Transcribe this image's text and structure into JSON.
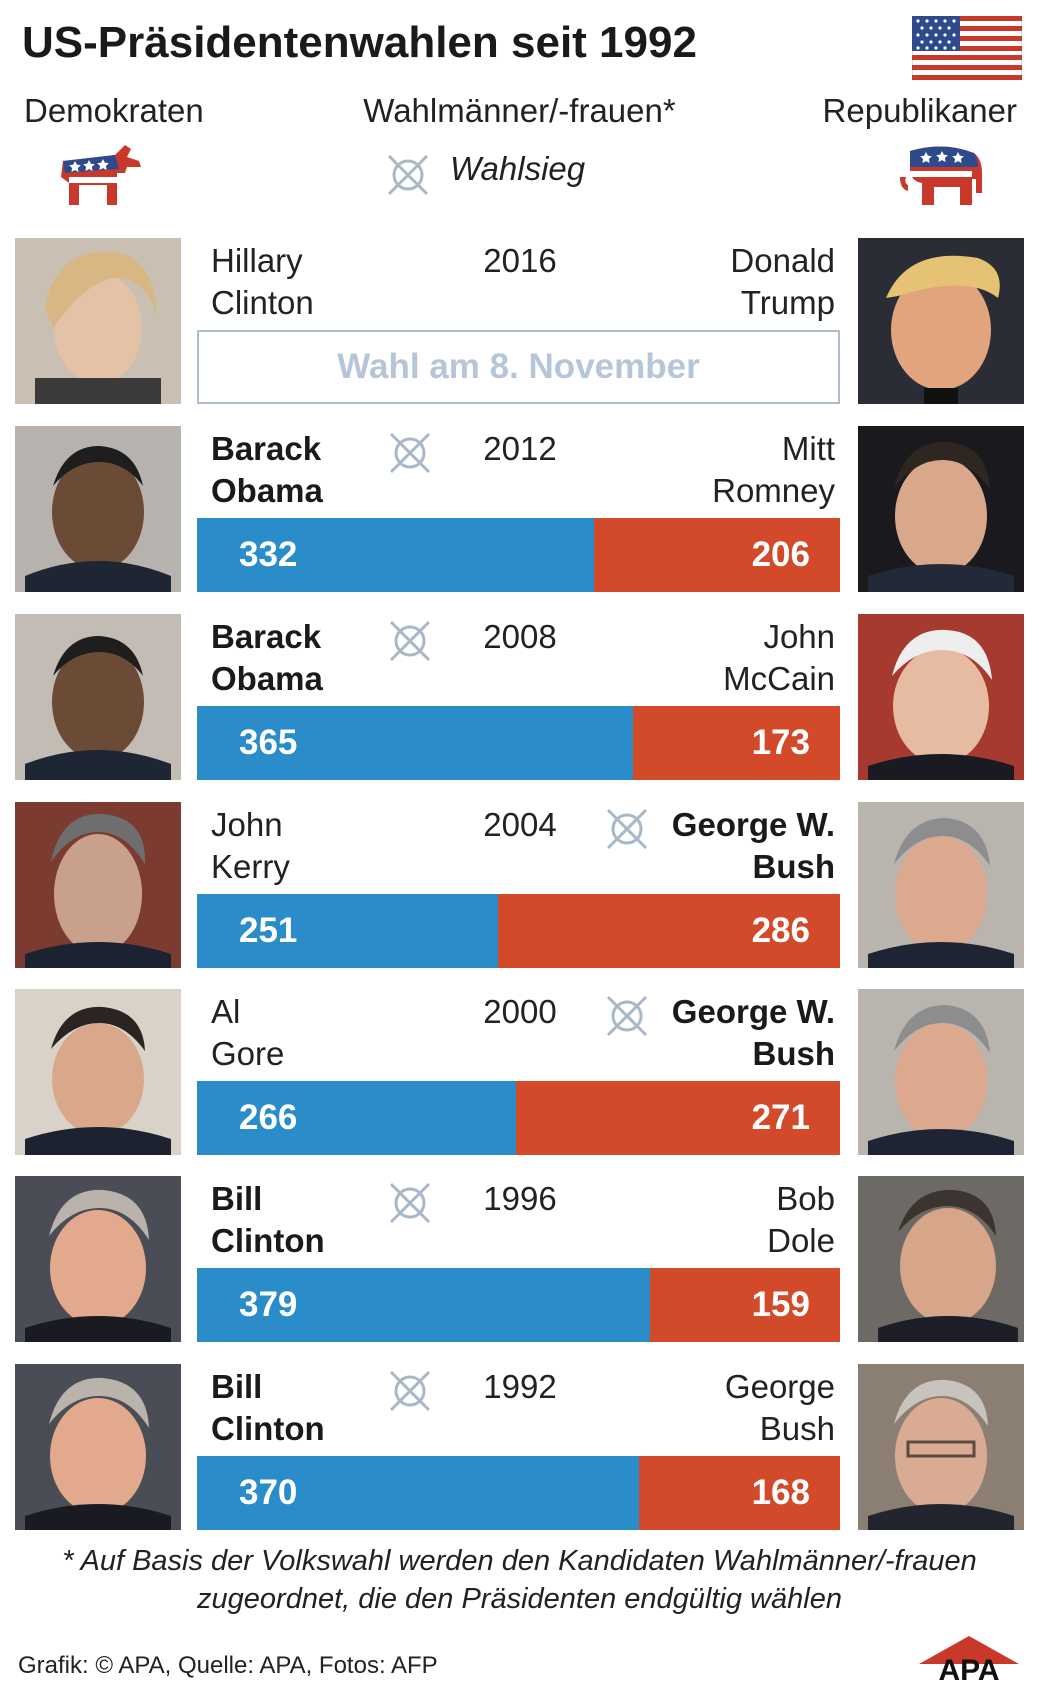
{
  "header": {
    "title": "US-Präsidentenwahlen seit 1992",
    "democrats_label": "Demokraten",
    "electors_label": "Wahlmänner/-frauen*",
    "republicans_label": "Republikaner",
    "legend_label": "Wahlsieg"
  },
  "pending_2016": {
    "year": "2016",
    "dem_first": "Hillary",
    "dem_last": "Clinton",
    "rep_first": "Donald",
    "rep_last": "Trump",
    "status": "Wahl am 8. November"
  },
  "chart_data": {
    "type": "bar",
    "stacked": true,
    "orientation": "horizontal",
    "categories": [
      "2012",
      "2008",
      "2004",
      "2000",
      "1996",
      "1992"
    ],
    "series": [
      {
        "name": "Demokraten",
        "color": "#2a8cc8",
        "values": [
          332,
          365,
          251,
          266,
          379,
          370
        ]
      },
      {
        "name": "Republikaner",
        "color": "#d24a2a",
        "values": [
          206,
          173,
          286,
          271,
          159,
          168
        ]
      }
    ],
    "rows": [
      {
        "year": "2012",
        "dem_first": "Barack",
        "dem_last": "Obama",
        "rep_first": "Mitt",
        "rep_last": "Romney",
        "dem": 332,
        "rep": 206,
        "winner": "dem"
      },
      {
        "year": "2008",
        "dem_first": "Barack",
        "dem_last": "Obama",
        "rep_first": "John",
        "rep_last": "McCain",
        "dem": 365,
        "rep": 173,
        "winner": "dem"
      },
      {
        "year": "2004",
        "dem_first": "John",
        "dem_last": "Kerry",
        "rep_first": "George W.",
        "rep_last": "Bush",
        "dem": 251,
        "rep": 286,
        "winner": "rep"
      },
      {
        "year": "2000",
        "dem_first": "Al",
        "dem_last": "Gore",
        "rep_first": "George W.",
        "rep_last": "Bush",
        "dem": 266,
        "rep": 271,
        "winner": "rep"
      },
      {
        "year": "1996",
        "dem_first": "Bill",
        "dem_last": "Clinton",
        "rep_first": "Bob",
        "rep_last": "Dole",
        "dem": 379,
        "rep": 159,
        "winner": "dem"
      },
      {
        "year": "1992",
        "dem_first": "Bill",
        "dem_last": "Clinton",
        "rep_first": "George",
        "rep_last": "Bush",
        "dem": 370,
        "rep": 168,
        "winner": "dem"
      }
    ]
  },
  "footer": {
    "footnote_line1": "* Auf Basis der Volkswahl werden den Kandidaten Wahlmänner/-frauen",
    "footnote_line2": "zugeordnet, die den Präsidenten endgültig wählen",
    "credit": "Grafik: © APA, Quelle: APA, Fotos: AFP",
    "logo_text": "APA"
  },
  "colors": {
    "democrat": "#2a8cc8",
    "republican": "#d24a2a",
    "pending_text": "#b5c6d9",
    "icon_gray": "#a9b8c9"
  }
}
